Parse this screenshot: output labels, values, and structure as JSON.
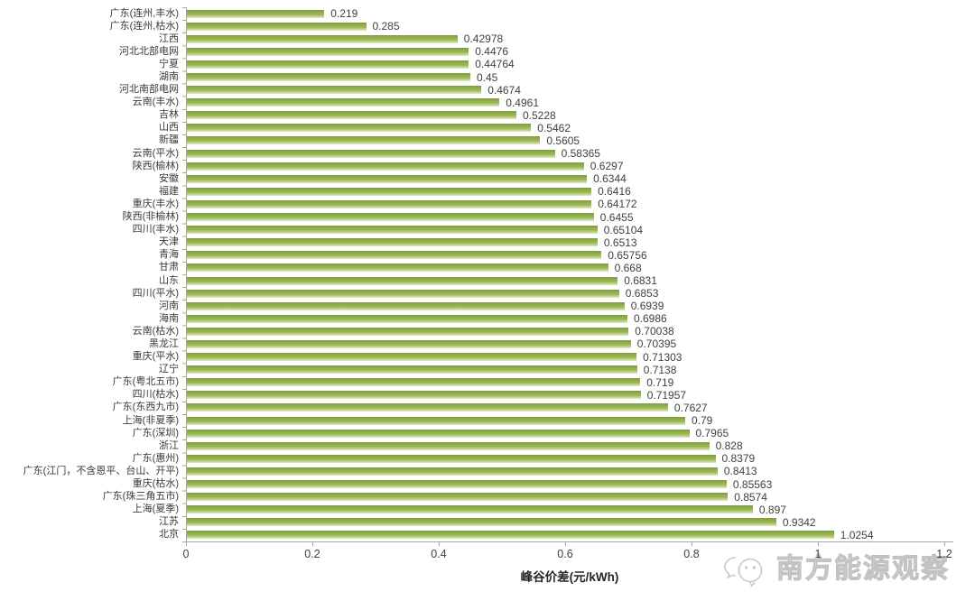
{
  "chart_data": {
    "type": "bar",
    "orientation": "horizontal",
    "title": "",
    "xlabel": "峰谷价差(元/kWh)",
    "ylabel": "",
    "xlim": [
      0,
      1.2
    ],
    "x_ticks": [
      0,
      0.2,
      0.4,
      0.6,
      0.8,
      1,
      1.2
    ],
    "x_tick_labels": [
      "0",
      "0.2",
      "0.4",
      "0.6",
      "0.8",
      "1",
      "1.2"
    ],
    "grid": false,
    "legend": null,
    "bar_color": "#8fae4a",
    "axis_color": "#a6a6a6",
    "label_color": "#3a3a3a",
    "categories": [
      "广东(连州,丰水)",
      "广东(连州,枯水)",
      "江西",
      "河北北部电网",
      "宁夏",
      "湖南",
      "河北南部电网",
      "云南(丰水)",
      "吉林",
      "山西",
      "新疆",
      "云南(平水)",
      "陕西(榆林)",
      "安徽",
      "福建",
      "重庆(丰水)",
      "陕西(非榆林)",
      "四川(丰水)",
      "天津",
      "青海",
      "甘肃",
      "山东",
      "四川(平水)",
      "河南",
      "海南",
      "云南(枯水)",
      "黑龙江",
      "重庆(平水)",
      "辽宁",
      "广东(粤北五市)",
      "四川(枯水)",
      "广东(东西九市)",
      "上海(非夏季)",
      "广东(深圳)",
      "浙江",
      "广东(惠州)",
      "广东(江门，不含恩平、台山、开平)",
      "重庆(枯水)",
      "广东(珠三角五市)",
      "上海(夏季)",
      "江苏",
      "北京"
    ],
    "values": [
      0.219,
      0.285,
      0.42978,
      0.4476,
      0.44764,
      0.45,
      0.4674,
      0.4961,
      0.5228,
      0.5462,
      0.5605,
      0.58365,
      0.6297,
      0.6344,
      0.6416,
      0.64172,
      0.6455,
      0.65104,
      0.6513,
      0.65756,
      0.668,
      0.6831,
      0.6853,
      0.6939,
      0.6986,
      0.70038,
      0.70395,
      0.71303,
      0.7138,
      0.719,
      0.71957,
      0.7627,
      0.79,
      0.7965,
      0.828,
      0.8379,
      0.8413,
      0.85563,
      0.8574,
      0.897,
      0.9342,
      1.0254
    ]
  },
  "watermark": {
    "text": "南方能源观察"
  }
}
